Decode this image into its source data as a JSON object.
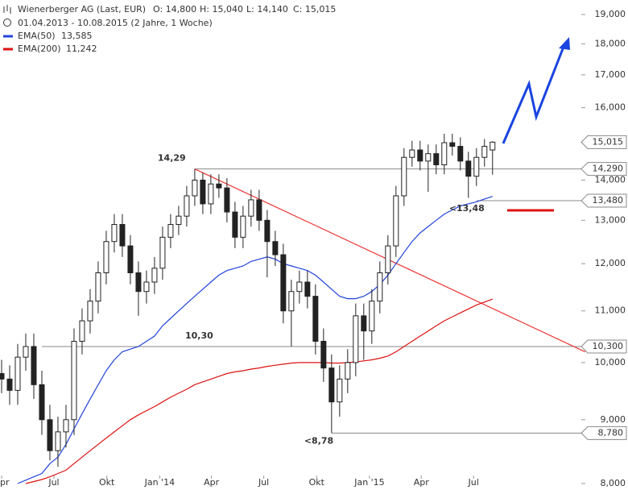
{
  "chart_data": {
    "type": "candlestick",
    "title": "Wienerberger AG (Last, EUR)",
    "ohlc_labels": [
      "O: 14,800",
      "H: 15,040",
      "L: 14,140",
      "C: 15,015"
    ],
    "subtitle": "01.04.2013 - 10.08.2015 (2 Jahre, 1 Woche)",
    "log_scale": true,
    "ylim": [
      8,
      19
    ],
    "yticks": [
      {
        "value": 8,
        "label": "8,000"
      },
      {
        "value": 9,
        "label": "9,000"
      },
      {
        "value": 10,
        "label": "10,000"
      },
      {
        "value": 11,
        "label": "11,000"
      },
      {
        "value": 12,
        "label": "12,000"
      },
      {
        "value": 13,
        "label": "13,000"
      },
      {
        "value": 14,
        "label": "14,000"
      },
      {
        "value": 15,
        "label": "15,000"
      },
      {
        "value": 16,
        "label": "16,000"
      },
      {
        "value": 17,
        "label": "17,000"
      },
      {
        "value": 18,
        "label": "18,000"
      },
      {
        "value": 19,
        "label": "19,000"
      }
    ],
    "xticks": [
      {
        "value": "2013-04-01",
        "label": "Apr"
      },
      {
        "value": "2013-07-01",
        "label": "Jul"
      },
      {
        "value": "2013-10-01",
        "label": "Okt"
      },
      {
        "value": "2014-01-01",
        "label": "Jan '14"
      },
      {
        "value": "2014-04-01",
        "label": "Apr"
      },
      {
        "value": "2014-07-01",
        "label": "Jul"
      },
      {
        "value": "2014-10-01",
        "label": "Okt"
      },
      {
        "value": "2015-01-01",
        "label": "Jan '15"
      },
      {
        "value": "2015-04-01",
        "label": "Apr"
      },
      {
        "value": "2015-07-01",
        "label": "Jul"
      }
    ],
    "x": [
      "2013-04-01",
      "2013-04-15",
      "2013-04-29",
      "2013-05-13",
      "2013-05-27",
      "2013-06-10",
      "2013-06-24",
      "2013-07-08",
      "2013-07-22",
      "2013-08-05",
      "2013-08-19",
      "2013-09-02",
      "2013-09-16",
      "2013-09-30",
      "2013-10-14",
      "2013-10-28",
      "2013-11-11",
      "2013-11-25",
      "2013-12-09",
      "2013-12-23",
      "2014-01-06",
      "2014-01-20",
      "2014-02-03",
      "2014-02-17",
      "2014-03-03",
      "2014-03-17",
      "2014-03-31",
      "2014-04-14",
      "2014-04-28",
      "2014-05-12",
      "2014-05-26",
      "2014-06-09",
      "2014-06-23",
      "2014-07-07",
      "2014-07-21",
      "2014-08-04",
      "2014-08-18",
      "2014-09-01",
      "2014-09-15",
      "2014-09-29",
      "2014-10-13",
      "2014-10-27",
      "2014-11-10",
      "2014-11-24",
      "2014-12-08",
      "2014-12-22",
      "2015-01-05",
      "2015-01-19",
      "2015-02-02",
      "2015-02-16",
      "2015-03-02",
      "2015-03-16",
      "2015-03-30",
      "2015-04-13",
      "2015-04-27",
      "2015-05-11",
      "2015-05-25",
      "2015-06-08",
      "2015-06-22",
      "2015-07-06",
      "2015-07-20",
      "2015-08-03"
    ],
    "open": [
      9.8,
      9.7,
      9.5,
      10.1,
      10.3,
      9.6,
      9.0,
      8.5,
      8.8,
      9.0,
      10.4,
      10.8,
      11.2,
      11.8,
      12.5,
      12.9,
      12.4,
      11.8,
      11.4,
      11.6,
      11.9,
      12.6,
      12.9,
      13.1,
      13.6,
      14.0,
      13.4,
      13.9,
      13.8,
      13.2,
      12.6,
      13.1,
      13.5,
      13.0,
      12.5,
      12.2,
      11.0,
      11.4,
      11.6,
      11.3,
      10.4,
      9.9,
      9.3,
      9.7,
      10.0,
      10.9,
      10.6,
      11.2,
      11.8,
      12.4,
      13.6,
      14.6,
      14.8,
      14.5,
      14.7,
      14.4,
      15.0,
      14.9,
      14.5,
      14.1,
      14.6,
      14.8
    ],
    "high": [
      10.05,
      9.95,
      10.35,
      10.55,
      10.55,
      9.85,
      9.25,
      9.05,
      9.25,
      10.65,
      11.05,
      11.45,
      12.05,
      12.75,
      13.15,
      13.15,
      12.65,
      12.05,
      11.85,
      12.15,
      12.85,
      13.15,
      13.35,
      13.85,
      14.29,
      14.2,
      14.15,
      14.15,
      14.05,
      13.45,
      13.35,
      13.75,
      13.75,
      13.25,
      12.75,
      12.45,
      11.65,
      11.85,
      11.85,
      11.55,
      10.65,
      10.15,
      9.95,
      10.25,
      11.15,
      11.15,
      11.45,
      12.05,
      12.65,
      13.85,
      14.85,
      15.05,
      15.05,
      14.95,
      14.95,
      15.25,
      15.25,
      15.15,
      14.75,
      14.85,
      15.1,
      15.04
    ],
    "low": [
      9.45,
      9.25,
      9.25,
      9.85,
      9.35,
      8.75,
      8.35,
      8.25,
      8.55,
      8.75,
      10.15,
      10.55,
      10.95,
      11.55,
      12.25,
      12.15,
      11.55,
      10.9,
      11.15,
      11.35,
      11.65,
      12.35,
      12.65,
      12.85,
      13.35,
      13.15,
      13.15,
      13.55,
      12.95,
      12.35,
      12.35,
      12.85,
      12.75,
      11.7,
      11.95,
      10.75,
      10.3,
      11.15,
      11.05,
      10.15,
      9.65,
      8.78,
      9.05,
      9.45,
      9.75,
      10.05,
      10.35,
      10.95,
      11.55,
      12.15,
      13.35,
      14.35,
      14.25,
      13.7,
      14.15,
      14.15,
      14.65,
      14.25,
      13.55,
      13.85,
      14.35,
      14.14
    ],
    "close": [
      9.7,
      9.5,
      10.1,
      10.3,
      9.6,
      9.0,
      8.5,
      8.8,
      9.0,
      10.4,
      10.8,
      11.2,
      11.8,
      12.5,
      12.9,
      12.4,
      11.8,
      11.4,
      11.6,
      11.9,
      12.6,
      12.9,
      13.1,
      13.6,
      14.0,
      13.4,
      13.9,
      13.8,
      13.2,
      12.6,
      13.1,
      13.5,
      13.0,
      12.5,
      12.2,
      11.0,
      11.4,
      11.6,
      11.3,
      10.4,
      9.9,
      9.3,
      9.7,
      10.0,
      10.9,
      10.6,
      11.2,
      11.8,
      12.4,
      13.6,
      14.6,
      14.8,
      14.5,
      14.7,
      14.4,
      15.0,
      14.9,
      14.5,
      14.1,
      14.6,
      14.9,
      15.015
    ],
    "last_label": "15,015",
    "series": [
      {
        "name": "EMA(50)",
        "color": "#2244dd",
        "legend_value": "13,585",
        "values": [
          null,
          null,
          8.0,
          8.05,
          8.1,
          8.15,
          8.3,
          8.4,
          8.6,
          8.85,
          9.1,
          9.35,
          9.6,
          9.85,
          10.05,
          10.2,
          10.25,
          10.3,
          10.4,
          10.5,
          10.7,
          10.85,
          11.0,
          11.15,
          11.3,
          11.45,
          11.6,
          11.75,
          11.85,
          11.9,
          11.95,
          12.05,
          12.1,
          12.15,
          12.1,
          12.0,
          11.95,
          11.9,
          11.85,
          11.75,
          11.6,
          11.45,
          11.3,
          11.25,
          11.25,
          11.3,
          11.4,
          11.55,
          11.75,
          12.0,
          12.25,
          12.5,
          12.7,
          12.85,
          13.0,
          13.15,
          13.25,
          13.35,
          13.4,
          13.45,
          13.52,
          13.585
        ]
      },
      {
        "name": "EMA(200)",
        "color": "#dd1111",
        "legend_value": "11,242",
        "values": [
          null,
          null,
          null,
          8.0,
          8.03,
          8.06,
          8.1,
          8.15,
          8.2,
          8.3,
          8.4,
          8.5,
          8.6,
          8.7,
          8.8,
          8.9,
          9.0,
          9.08,
          9.15,
          9.22,
          9.3,
          9.38,
          9.45,
          9.52,
          9.6,
          9.65,
          9.7,
          9.75,
          9.8,
          9.83,
          9.85,
          9.88,
          9.9,
          9.93,
          9.95,
          9.97,
          9.99,
          10.0,
          10.0,
          10.0,
          10.0,
          9.99,
          9.99,
          10.0,
          10.01,
          10.03,
          10.05,
          10.08,
          10.12,
          10.2,
          10.3,
          10.4,
          10.5,
          10.6,
          10.7,
          10.8,
          10.88,
          10.96,
          11.04,
          11.12,
          11.18,
          11.242
        ]
      }
    ],
    "levels": [
      {
        "value": 14.29,
        "from": "2014-03-03",
        "label": "14,290",
        "note": "14,29"
      },
      {
        "value": 10.3,
        "from": "2013-06-10",
        "label": "10,300",
        "note": "10,30"
      },
      {
        "value": 13.48,
        "from": "2015-07-06",
        "label": "13,480",
        "note": "<13,48"
      },
      {
        "value": 8.78,
        "from": "2014-10-27",
        "label": "8,780",
        "note": "<8,78"
      }
    ],
    "trendline": {
      "color": "#ee3333",
      "x": [
        "2014-03-03",
        "2016-01-11"
      ],
      "values": [
        14.29,
        10.2
      ]
    }
  }
}
